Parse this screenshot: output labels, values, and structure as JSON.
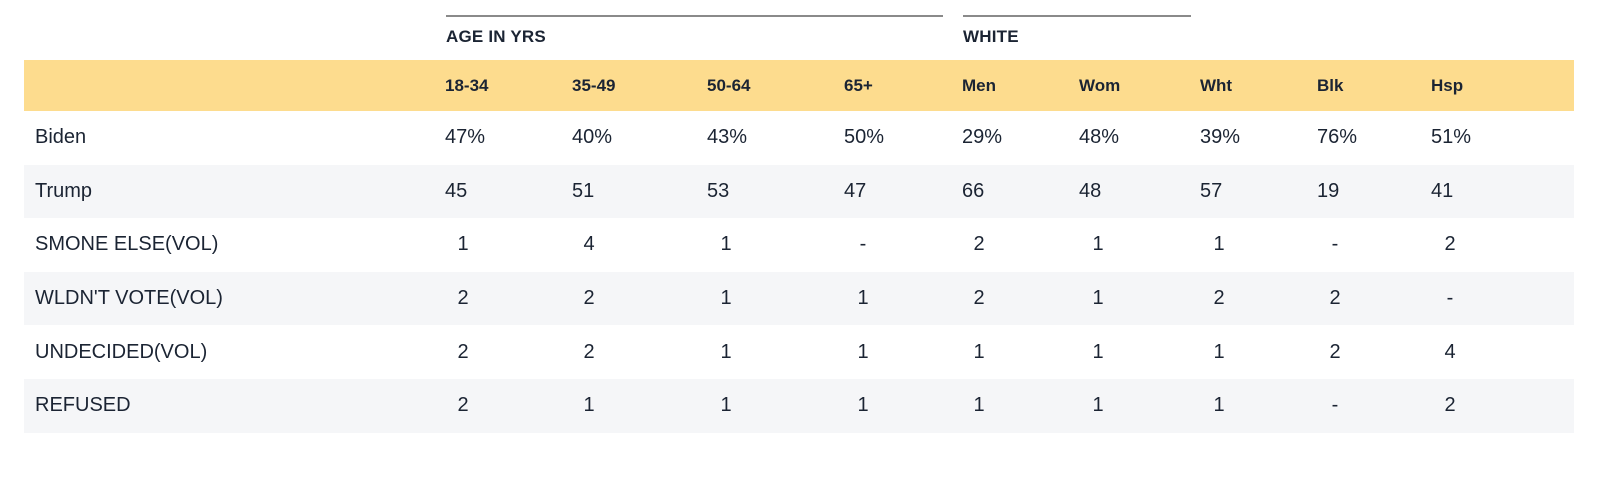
{
  "chart_data": {
    "type": "table",
    "column_groups": [
      {
        "label": "AGE IN YRS"
      },
      {
        "label": "WHITE"
      }
    ],
    "columns": [
      "18-34",
      "35-49",
      "50-64",
      "65+",
      "Men",
      "Wom",
      "Wht",
      "Blk",
      "Hsp"
    ],
    "rows": [
      {
        "label": "Biden",
        "values": [
          "47%",
          "40%",
          "43%",
          "50%",
          "29%",
          "48%",
          "39%",
          "76%",
          "51%"
        ]
      },
      {
        "label": "Trump",
        "values": [
          "45",
          "51",
          "53",
          "47",
          "66",
          "48",
          "57",
          "19",
          "41"
        ]
      },
      {
        "label": "SMONE ELSE(VOL)",
        "values": [
          "1",
          "4",
          "1",
          "-",
          "2",
          "1",
          "1",
          "-",
          "2"
        ]
      },
      {
        "label": "WLDN'T VOTE(VOL)",
        "values": [
          "2",
          "2",
          "1",
          "1",
          "2",
          "1",
          "2",
          "2",
          "-"
        ]
      },
      {
        "label": "UNDECIDED(VOL)",
        "values": [
          "2",
          "2",
          "1",
          "1",
          "1",
          "1",
          "1",
          "2",
          "4"
        ]
      },
      {
        "label": "REFUSED",
        "values": [
          "2",
          "1",
          "1",
          "1",
          "1",
          "1",
          "1",
          "-",
          "2"
        ]
      }
    ],
    "colors": {
      "header_background": "#fddc8e",
      "shaded_row": "#f5f6f8",
      "text": "#1b2433",
      "group_rule": "#8a8a8a"
    }
  }
}
